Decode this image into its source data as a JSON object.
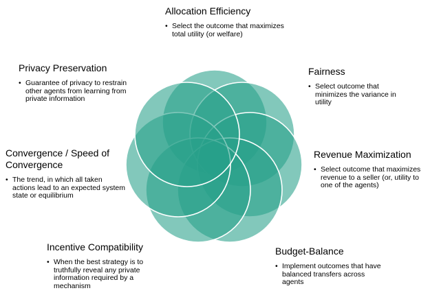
{
  "diagram": {
    "colors": {
      "petal_fill": "#27a08a",
      "petal_stroke": "#ffffff",
      "text": "#000000"
    },
    "blocks": {
      "allocation": {
        "title": "Allocation Efficiency",
        "bullet": "Select the outcome that maximizes total utility (or welfare)"
      },
      "fairness": {
        "title": "Fairness",
        "bullet": "Select outcome that minimizes the variance in utility"
      },
      "revenue": {
        "title": "Revenue Maximization",
        "bullet": "Select outcome that maximizes revenue to a seller (or, utility to one of the agents)"
      },
      "budget": {
        "title": "Budget-Balance",
        "bullet": "Implement outcomes that have balanced transfers across agents"
      },
      "incentive": {
        "title": "Incentive Compatibility",
        "bullet": "When the best strategy is to truthfully reveal any private information required by a mechanism"
      },
      "convergence": {
        "title": "Convergence / Speed of Convergence",
        "bullet": "The trend, in which all taken actions lead to an expected system state or equilibrium"
      },
      "privacy": {
        "title": "Privacy Preservation",
        "bullet": "Guarantee of privacy to restrain other agents from learning from private information"
      }
    }
  }
}
